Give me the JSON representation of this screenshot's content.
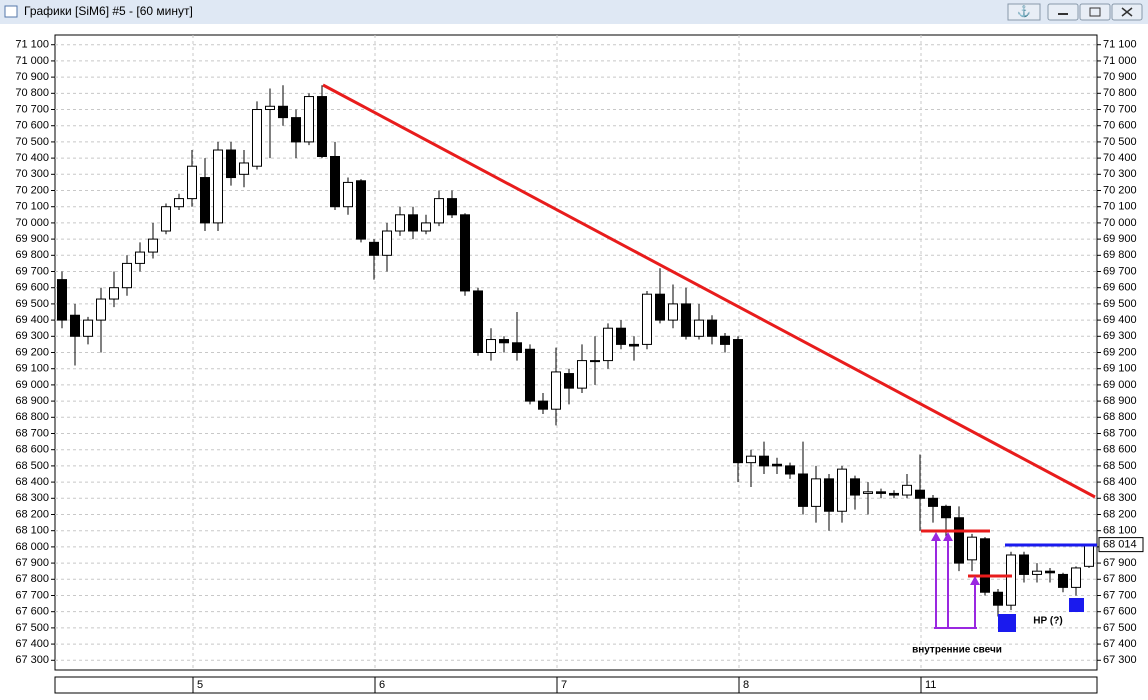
{
  "chart_data": {
    "type": "candlestick",
    "title": "Графики [SiM6] #5 - [60 минут]",
    "categories": [
      null,
      null,
      null,
      null,
      null,
      null,
      null,
      null,
      null,
      null,
      "5",
      null,
      null,
      null,
      null,
      null,
      null,
      null,
      null,
      null,
      null,
      null,
      null,
      null,
      "6",
      null,
      null,
      null,
      null,
      null,
      null,
      null,
      null,
      null,
      null,
      null,
      null,
      null,
      "7",
      null,
      null,
      null,
      null,
      null,
      null,
      null,
      null,
      null,
      null,
      null,
      null,
      null,
      "8",
      null,
      null,
      null,
      null,
      null,
      null,
      null,
      null,
      null,
      null,
      null,
      null,
      null,
      "11",
      null,
      null,
      null,
      null,
      null,
      null,
      null,
      null,
      null,
      null,
      null,
      null,
      null
    ],
    "open": [
      69650,
      69430,
      69300,
      69400,
      69530,
      69600,
      69750,
      69820,
      69950,
      70100,
      70150,
      70280,
      70000,
      70450,
      70300,
      70350,
      70700,
      70720,
      70650,
      70500,
      70780,
      70410,
      70100,
      70260,
      69880,
      69800,
      69950,
      70050,
      69950,
      70000,
      70150,
      70050,
      69580,
      69200,
      69280,
      69260,
      69220,
      68900,
      68850,
      69070,
      68980,
      69150,
      69150,
      69350,
      69250,
      69250,
      69560,
      69400,
      69500,
      69300,
      69400,
      69300,
      69280,
      68520,
      68560,
      68510,
      68500,
      68450,
      68250,
      68420,
      68220,
      68420,
      68330,
      68340,
      68330,
      68320,
      68350,
      68300,
      68250,
      68180,
      67920,
      68050,
      67720,
      67640,
      67950,
      67830,
      67850,
      67830,
      67750,
      67880
    ],
    "high": [
      69700,
      69500,
      69420,
      69600,
      69700,
      69800,
      69880,
      70000,
      70120,
      70180,
      70450,
      70400,
      70500,
      70500,
      70450,
      70750,
      70830,
      70850,
      70700,
      70800,
      70850,
      70500,
      70280,
      70270,
      69900,
      70000,
      70100,
      70100,
      70050,
      70200,
      70200,
      70060,
      69600,
      69350,
      69300,
      69450,
      69250,
      68950,
      69230,
      69100,
      69250,
      69300,
      69380,
      69400,
      69300,
      69580,
      69720,
      69620,
      69600,
      69500,
      69430,
      69320,
      69300,
      68600,
      68650,
      68550,
      68520,
      68650,
      68500,
      68450,
      68500,
      68440,
      68400,
      68360,
      68350,
      68450,
      68570,
      68320,
      68260,
      68250,
      68080,
      68060,
      67740,
      67970,
      67970,
      67900,
      67870,
      67840,
      67880,
      68020
    ],
    "low": [
      69350,
      69120,
      69250,
      69200,
      69480,
      69550,
      69700,
      69780,
      69930,
      70080,
      70100,
      69950,
      69950,
      70230,
      70220,
      70330,
      70400,
      70600,
      70400,
      70480,
      70400,
      70080,
      70050,
      69880,
      69650,
      69700,
      69920,
      69900,
      69930,
      69980,
      70030,
      69550,
      69180,
      69150,
      69200,
      69150,
      68880,
      68820,
      68750,
      68880,
      68950,
      69000,
      69100,
      69220,
      69150,
      69220,
      69380,
      69350,
      69280,
      69280,
      69250,
      69200,
      68400,
      68370,
      68450,
      68450,
      68420,
      68200,
      68150,
      68100,
      68150,
      68230,
      68200,
      68300,
      68300,
      68300,
      68100,
      68150,
      68050,
      67850,
      67850,
      67700,
      67570,
      67610,
      67780,
      67780,
      67780,
      67720,
      67700,
      67870
    ],
    "close": [
      69400,
      69300,
      69400,
      69530,
      69600,
      69750,
      69820,
      69900,
      70100,
      70150,
      70350,
      70000,
      70450,
      70280,
      70370,
      70700,
      70720,
      70650,
      70500,
      70780,
      70410,
      70100,
      70250,
      69900,
      69800,
      69950,
      70050,
      69950,
      70000,
      70150,
      70050,
      69580,
      69200,
      69280,
      69260,
      69200,
      68900,
      68850,
      69080,
      68980,
      69150,
      69150,
      69350,
      69250,
      69240,
      69560,
      69400,
      69500,
      69300,
      69400,
      69300,
      69250,
      68520,
      68560,
      68500,
      68500,
      68450,
      68250,
      68420,
      68220,
      68480,
      68320,
      68340,
      68330,
      68320,
      68380,
      68300,
      68250,
      68180,
      67900,
      68060,
      67720,
      67640,
      67950,
      67830,
      67850,
      67840,
      67750,
      67870,
      68014
    ],
    "up_color": "#ffffff",
    "down_color": "#000000",
    "ylim": [
      67240,
      71160
    ],
    "yticks": [
      {
        "value": 67300,
        "label": "67 300"
      },
      {
        "value": 67400,
        "label": "67 400"
      },
      {
        "value": 67500,
        "label": "67 500"
      },
      {
        "value": 67600,
        "label": "67 600"
      },
      {
        "value": 67700,
        "label": "67 700"
      },
      {
        "value": 67800,
        "label": "67 800"
      },
      {
        "value": 67900,
        "label": "67 900"
      },
      {
        "value": 68000,
        "label": "68 000"
      },
      {
        "value": 68100,
        "label": "68 100"
      },
      {
        "value": 68200,
        "label": "68 200"
      },
      {
        "value": 68300,
        "label": "68 300"
      },
      {
        "value": 68400,
        "label": "68 400"
      },
      {
        "value": 68500,
        "label": "68 500"
      },
      {
        "value": 68600,
        "label": "68 600"
      },
      {
        "value": 68700,
        "label": "68 700"
      },
      {
        "value": 68800,
        "label": "68 800"
      },
      {
        "value": 68900,
        "label": "68 900"
      },
      {
        "value": 69000,
        "label": "69 000"
      },
      {
        "value": 69100,
        "label": "69 100"
      },
      {
        "value": 69200,
        "label": "69 200"
      },
      {
        "value": 69300,
        "label": "69 300"
      },
      {
        "value": 69400,
        "label": "69 400"
      },
      {
        "value": 69500,
        "label": "69 500"
      },
      {
        "value": 69600,
        "label": "69 600"
      },
      {
        "value": 69700,
        "label": "69 700"
      },
      {
        "value": 69800,
        "label": "69 800"
      },
      {
        "value": 69900,
        "label": "69 900"
      },
      {
        "value": 70000,
        "label": "70 000"
      },
      {
        "value": 70100,
        "label": "70 100"
      },
      {
        "value": 70200,
        "label": "70 200"
      },
      {
        "value": 70300,
        "label": "70 300"
      },
      {
        "value": 70400,
        "label": "70 400"
      },
      {
        "value": 70500,
        "label": "70 500"
      },
      {
        "value": 70600,
        "label": "70 600"
      },
      {
        "value": 70700,
        "label": "70 700"
      },
      {
        "value": 70800,
        "label": "70 800"
      },
      {
        "value": 70900,
        "label": "70 900"
      },
      {
        "value": 71000,
        "label": "71 000"
      },
      {
        "value": 71100,
        "label": "71 100"
      }
    ],
    "last_price": {
      "value": 68014,
      "label": "68 014"
    },
    "grid": true,
    "annotations": [
      "внутренние свечи",
      "НР (?)"
    ]
  }
}
